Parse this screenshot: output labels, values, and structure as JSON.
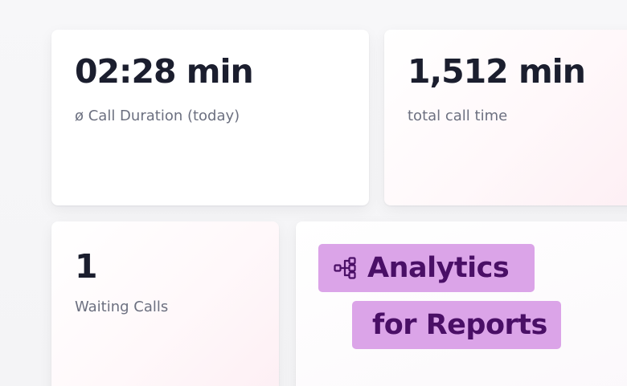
{
  "cards": {
    "call_duration": {
      "value": "02:28 min",
      "label": "ø Call Duration (today)"
    },
    "total_call_time": {
      "value": "1,512 min",
      "label": "total call time"
    },
    "waiting_calls": {
      "value": "1",
      "label": "Waiting Calls"
    }
  },
  "feature": {
    "icon": "flow-diagram-icon",
    "line1": "Analytics",
    "line2": "for Reports"
  },
  "colors": {
    "badge_background": "#dba4e8",
    "badge_text": "#4a0f66",
    "metric_value": "#1b1e2e",
    "metric_label": "#6c7080"
  }
}
